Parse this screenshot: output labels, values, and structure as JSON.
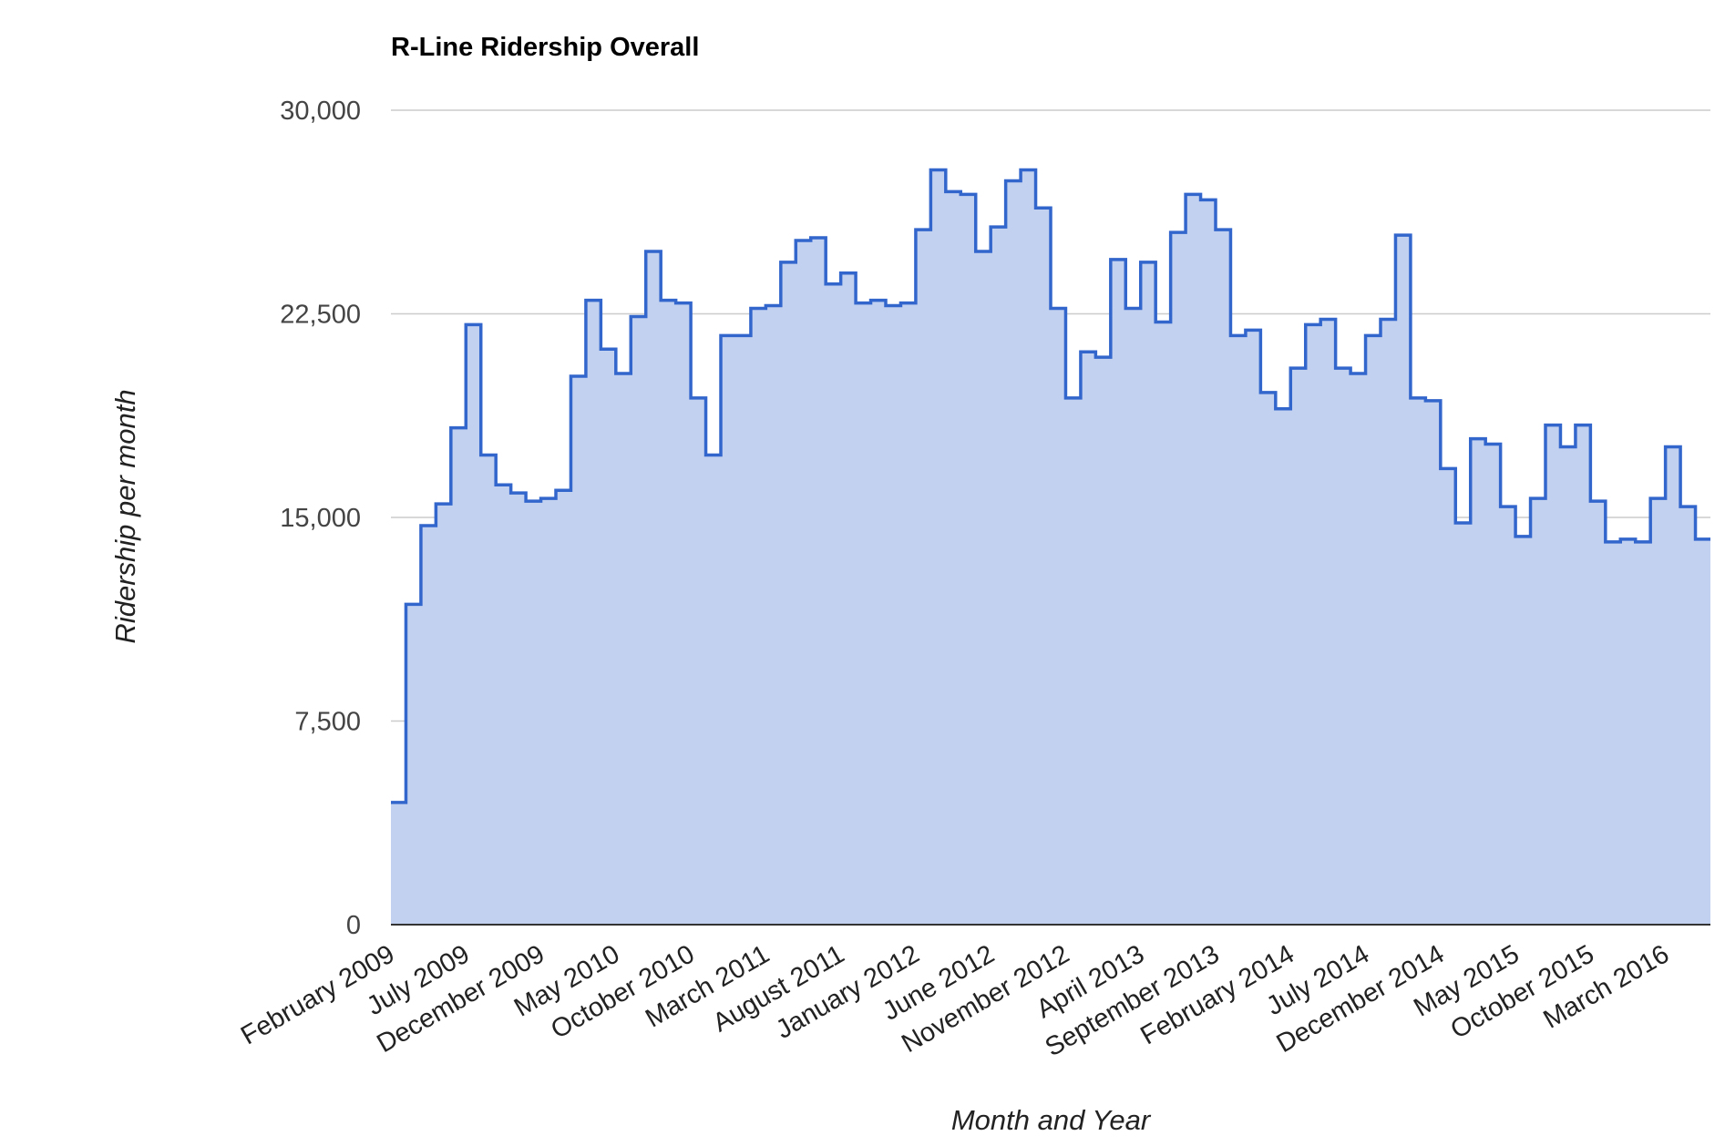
{
  "chart_data": {
    "type": "area",
    "step": true,
    "title": "R-Line Ridership Overall",
    "xlabel": "Month and Year",
    "ylabel": "Ridership per month",
    "ylim": [
      0,
      30000
    ],
    "yticks": [
      0,
      7500,
      15000,
      22500,
      30000
    ],
    "ytick_labels": [
      "0",
      "7,500",
      "15,000",
      "22,500",
      "30,000"
    ],
    "grid": true,
    "legend": "none",
    "xtick_labels": [
      {
        "label": "February 2009",
        "index": 0
      },
      {
        "label": "July 2009",
        "index": 5
      },
      {
        "label": "December 2009",
        "index": 10
      },
      {
        "label": "May 2010",
        "index": 15
      },
      {
        "label": "October 2010",
        "index": 20
      },
      {
        "label": "March 2011",
        "index": 25
      },
      {
        "label": "August 2011",
        "index": 30
      },
      {
        "label": "January 2012",
        "index": 35
      },
      {
        "label": "June 2012",
        "index": 40
      },
      {
        "label": "November 2012",
        "index": 45
      },
      {
        "label": "April 2013",
        "index": 50
      },
      {
        "label": "September 2013",
        "index": 55
      },
      {
        "label": "February 2014",
        "index": 60
      },
      {
        "label": "July 2014",
        "index": 65
      },
      {
        "label": "December 2014",
        "index": 70
      },
      {
        "label": "May 2015",
        "index": 75
      },
      {
        "label": "October 2015",
        "index": 80
      },
      {
        "label": "March 2016",
        "index": 85
      }
    ],
    "series": [
      {
        "name": "Ridership",
        "color": "#3366cc",
        "fill": "#c2d1f0",
        "values": [
          4500,
          11800,
          14700,
          15500,
          18300,
          22100,
          17300,
          16200,
          15900,
          15600,
          15700,
          16000,
          20200,
          23000,
          21200,
          20300,
          22400,
          24800,
          23000,
          22900,
          19400,
          17300,
          21700,
          21700,
          22700,
          22800,
          24400,
          25200,
          25300,
          23600,
          24000,
          22900,
          23000,
          22800,
          22900,
          25600,
          27800,
          27000,
          26900,
          24800,
          25700,
          27400,
          27800,
          26400,
          22700,
          19400,
          21100,
          20900,
          24500,
          22700,
          24400,
          22200,
          25500,
          26900,
          26700,
          25600,
          21700,
          21900,
          19600,
          19000,
          20500,
          22100,
          22300,
          20500,
          20300,
          21700,
          22300,
          25400,
          19400,
          19300,
          16800,
          14800,
          17900,
          17700,
          15400,
          14300,
          15700,
          18400,
          17600,
          18400,
          15600,
          14100,
          14200,
          14100,
          15700,
          17600,
          15400,
          14200
        ]
      }
    ]
  }
}
